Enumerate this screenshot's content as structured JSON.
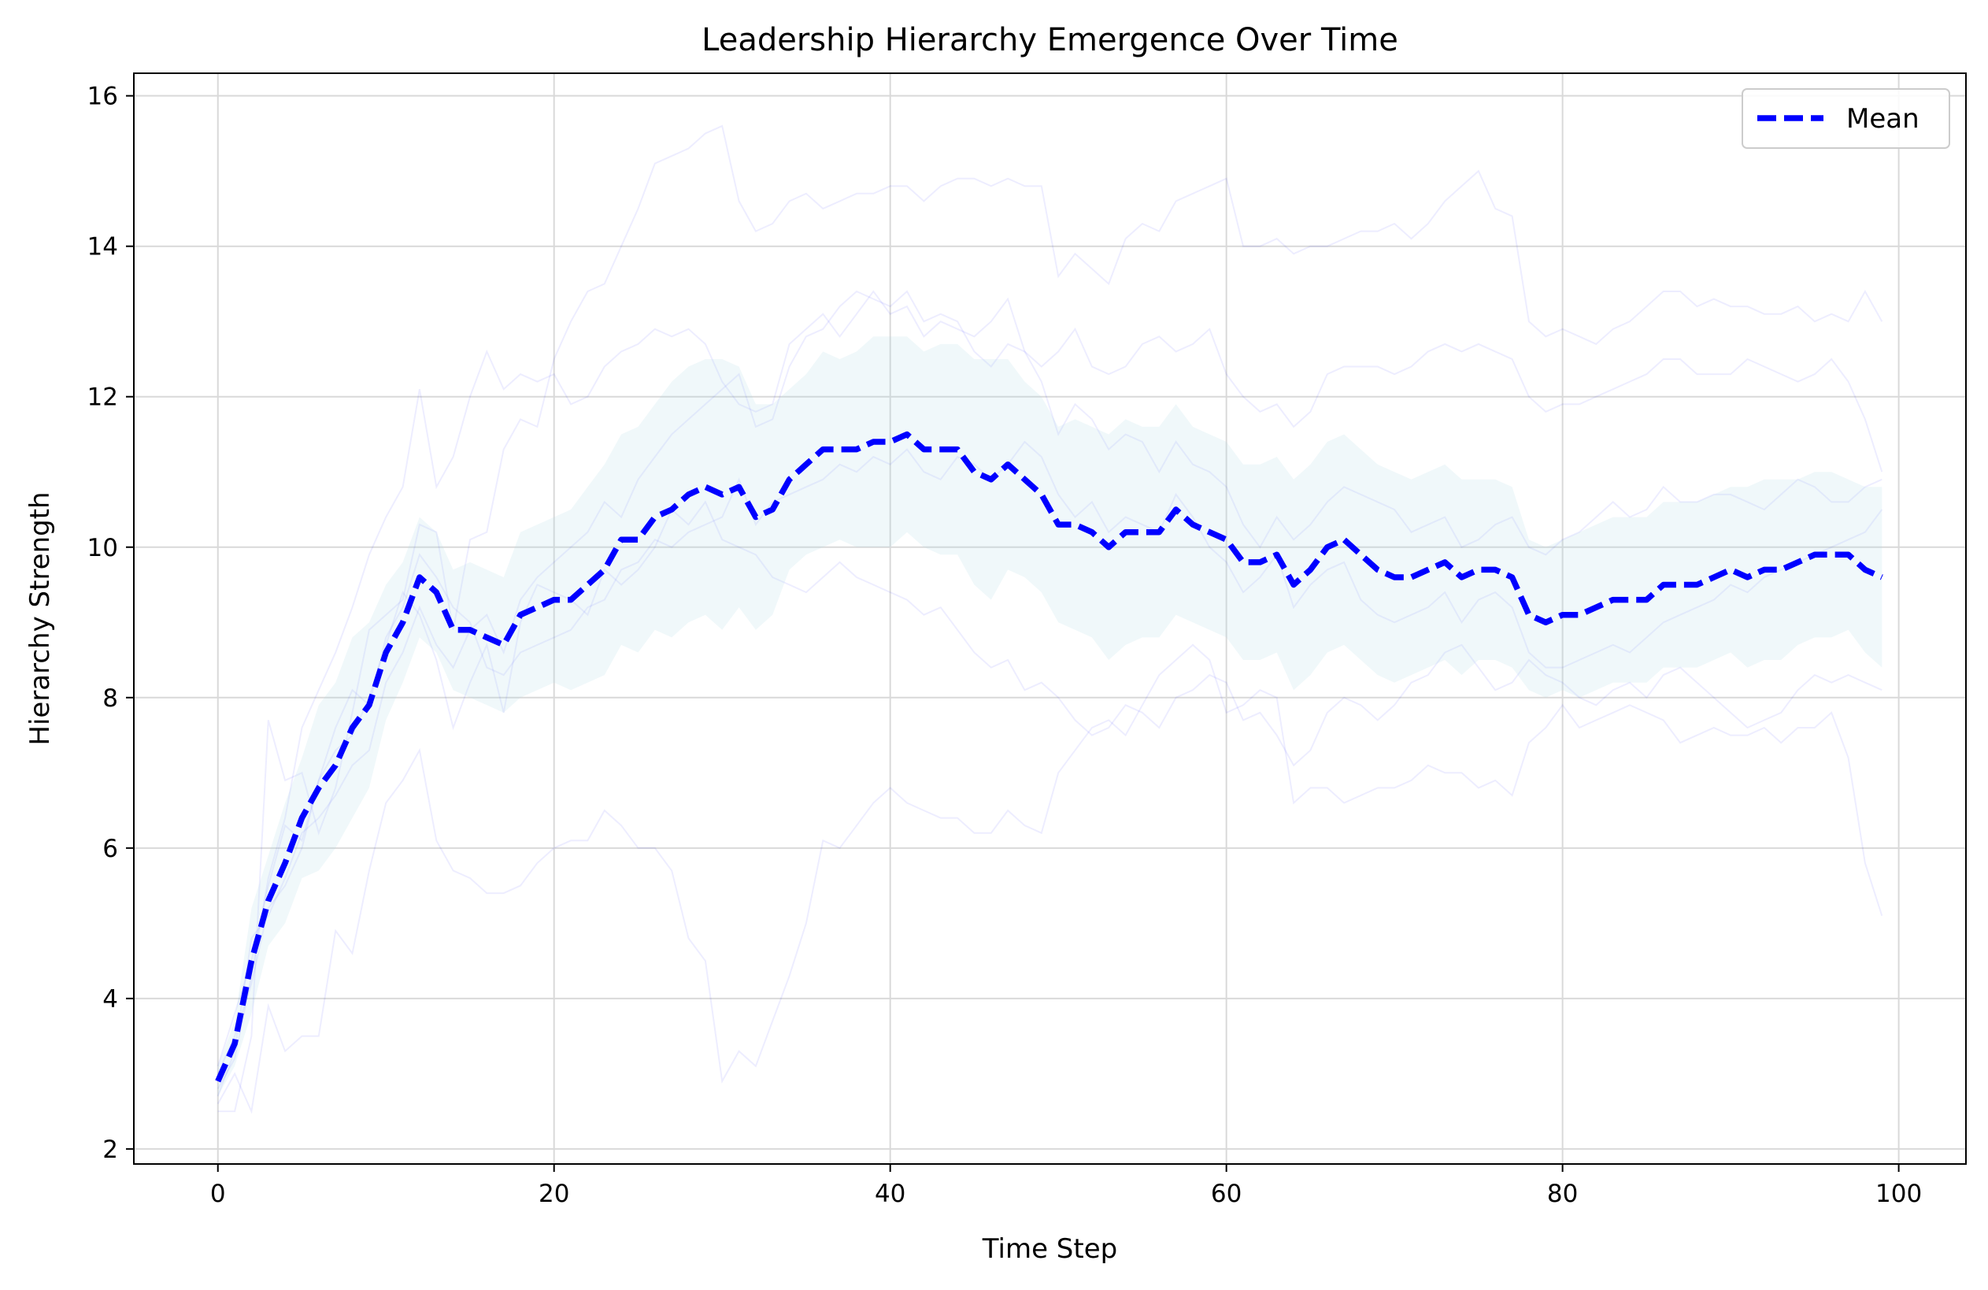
{
  "chart_data": {
    "type": "line",
    "title": "Leadership Hierarchy Emergence Over Time",
    "xlabel": "Time Step",
    "ylabel": "Hierarchy Strength",
    "xlim": [
      -5,
      104
    ],
    "ylim": [
      1.8,
      16.3
    ],
    "xticks": [
      0,
      20,
      40,
      60,
      80,
      100
    ],
    "yticks": [
      2,
      4,
      6,
      8,
      10,
      12,
      14,
      16
    ],
    "grid": true,
    "legend_position": "top-right",
    "colors": {
      "mean": "#0000ff",
      "band": "#add8e6",
      "runs": "#0000ff"
    },
    "series": [
      {
        "name": "Mean",
        "style": "dashed",
        "x": [
          0,
          1,
          2,
          3,
          4,
          5,
          6,
          7,
          8,
          9,
          10,
          11,
          12,
          13,
          14,
          15,
          16,
          17,
          18,
          19,
          20,
          21,
          22,
          23,
          24,
          25,
          26,
          27,
          28,
          29,
          30,
          31,
          32,
          33,
          34,
          35,
          36,
          37,
          38,
          39,
          40,
          41,
          42,
          43,
          44,
          45,
          46,
          47,
          48,
          49,
          50,
          51,
          52,
          53,
          54,
          55,
          56,
          57,
          58,
          59,
          60,
          61,
          62,
          63,
          64,
          65,
          66,
          67,
          68,
          69,
          70,
          71,
          72,
          73,
          74,
          75,
          76,
          77,
          78,
          79,
          80,
          81,
          82,
          83,
          84,
          85,
          86,
          87,
          88,
          89,
          90,
          91,
          92,
          93,
          94,
          95,
          96,
          97,
          98,
          99
        ],
        "y": [
          2.9,
          3.4,
          4.5,
          5.3,
          5.8,
          6.4,
          6.8,
          7.1,
          7.6,
          7.9,
          8.6,
          9.0,
          9.6,
          9.4,
          8.9,
          8.9,
          8.8,
          8.7,
          9.1,
          9.2,
          9.3,
          9.3,
          9.5,
          9.7,
          10.1,
          10.1,
          10.4,
          10.5,
          10.7,
          10.8,
          10.7,
          10.8,
          10.4,
          10.5,
          10.9,
          11.1,
          11.3,
          11.3,
          11.3,
          11.4,
          11.4,
          11.5,
          11.3,
          11.3,
          11.3,
          11.0,
          10.9,
          11.1,
          10.9,
          10.7,
          10.3,
          10.3,
          10.2,
          10.0,
          10.2,
          10.2,
          10.2,
          10.5,
          10.3,
          10.2,
          10.1,
          9.8,
          9.8,
          9.9,
          9.5,
          9.7,
          10.0,
          10.1,
          9.9,
          9.7,
          9.6,
          9.6,
          9.7,
          9.8,
          9.6,
          9.7,
          9.7,
          9.6,
          9.1,
          9.0,
          9.1,
          9.1,
          9.2,
          9.3,
          9.3,
          9.3,
          9.5,
          9.5,
          9.5,
          9.6,
          9.7,
          9.6,
          9.7,
          9.7,
          9.8,
          9.9,
          9.9,
          9.9,
          9.7,
          9.6
        ]
      }
    ],
    "band": {
      "upper": [
        3.1,
        3.7,
        5.2,
        5.9,
        6.6,
        7.2,
        7.9,
        8.2,
        8.8,
        9.0,
        9.5,
        9.8,
        10.4,
        10.2,
        9.7,
        9.8,
        9.7,
        9.6,
        10.2,
        10.3,
        10.4,
        10.5,
        10.8,
        11.1,
        11.5,
        11.6,
        11.9,
        12.2,
        12.4,
        12.5,
        12.5,
        12.4,
        11.9,
        11.9,
        12.1,
        12.3,
        12.6,
        12.5,
        12.6,
        12.8,
        12.8,
        12.8,
        12.6,
        12.7,
        12.7,
        12.5,
        12.5,
        12.5,
        12.2,
        12.0,
        11.6,
        11.7,
        11.6,
        11.5,
        11.7,
        11.6,
        11.6,
        11.9,
        11.6,
        11.5,
        11.4,
        11.1,
        11.1,
        11.2,
        10.9,
        11.1,
        11.4,
        11.5,
        11.3,
        11.1,
        11.0,
        10.9,
        11.0,
        11.1,
        10.9,
        10.9,
        10.9,
        10.8,
        10.1,
        10.0,
        10.1,
        10.2,
        10.3,
        10.4,
        10.4,
        10.4,
        10.6,
        10.6,
        10.6,
        10.7,
        10.8,
        10.8,
        10.9,
        10.9,
        10.9,
        11.0,
        11.0,
        10.9,
        10.8,
        10.8
      ],
      "lower": [
        2.7,
        3.1,
        3.8,
        4.7,
        5.0,
        5.6,
        5.7,
        6.0,
        6.4,
        6.8,
        7.7,
        8.2,
        8.8,
        8.6,
        8.1,
        8.0,
        7.9,
        7.8,
        8.0,
        8.1,
        8.2,
        8.1,
        8.2,
        8.3,
        8.7,
        8.6,
        8.9,
        8.8,
        9.0,
        9.1,
        8.9,
        9.2,
        8.9,
        9.1,
        9.7,
        9.9,
        10.0,
        10.1,
        10.0,
        10.0,
        10.0,
        10.2,
        10.0,
        9.9,
        9.9,
        9.5,
        9.3,
        9.7,
        9.6,
        9.4,
        9.0,
        8.9,
        8.8,
        8.5,
        8.7,
        8.8,
        8.8,
        9.1,
        9.0,
        8.9,
        8.8,
        8.5,
        8.5,
        8.6,
        8.1,
        8.3,
        8.6,
        8.7,
        8.5,
        8.3,
        8.2,
        8.3,
        8.4,
        8.5,
        8.3,
        8.5,
        8.5,
        8.4,
        8.1,
        8.0,
        8.1,
        8.0,
        8.1,
        8.2,
        8.2,
        8.2,
        8.4,
        8.4,
        8.4,
        8.5,
        8.6,
        8.4,
        8.5,
        8.5,
        8.7,
        8.8,
        8.8,
        8.9,
        8.6,
        8.4
      ]
    },
    "runs": [
      [
        2.5,
        2.5,
        3.5,
        7.7,
        6.9,
        7.0,
        6.2,
        6.8,
        7.8,
        8.9,
        9.1,
        9.3,
        10.3,
        10.2,
        8.9,
        10.1,
        10.2,
        11.3,
        11.7,
        11.6,
        12.5,
        13.0,
        13.4,
        13.5,
        14.0,
        14.5,
        15.1,
        15.2,
        15.3,
        15.5,
        15.6,
        14.6,
        14.2,
        14.3,
        14.6,
        14.7,
        14.5,
        14.6,
        14.7,
        14.7,
        14.8,
        14.8,
        14.6,
        14.8,
        14.9,
        14.9,
        14.8,
        14.9,
        14.8,
        14.8,
        13.6,
        13.9,
        13.7,
        13.5,
        14.1,
        14.3,
        14.2,
        14.6,
        14.7,
        14.8,
        14.9,
        14.0,
        14.0,
        14.1,
        13.9,
        14.0,
        14.0,
        14.1,
        14.2,
        14.2,
        14.3,
        14.1,
        14.3,
        14.6,
        14.8,
        15.0,
        14.5,
        14.4,
        13.0,
        12.8,
        12.9,
        12.8,
        12.7,
        12.9,
        13.0,
        13.2,
        13.4,
        13.4,
        13.2,
        13.3,
        13.2,
        13.2,
        13.1,
        13.1,
        13.2,
        13.0,
        13.1,
        13.0,
        13.4,
        13.0
      ],
      [
        2.6,
        3.0,
        2.5,
        3.9,
        3.3,
        3.5,
        3.5,
        4.9,
        4.6,
        5.7,
        6.6,
        6.9,
        7.3,
        6.1,
        5.7,
        5.6,
        5.4,
        5.4,
        5.5,
        5.8,
        6.0,
        6.1,
        6.1,
        6.5,
        6.3,
        6.0,
        6.0,
        5.7,
        4.8,
        4.5,
        2.9,
        3.3,
        3.1,
        3.7,
        4.3,
        5.0,
        6.1,
        6.0,
        6.3,
        6.6,
        6.8,
        6.6,
        6.5,
        6.4,
        6.4,
        6.2,
        6.2,
        6.5,
        6.3,
        6.2,
        7.0,
        7.3,
        7.6,
        7.7,
        7.5,
        7.9,
        8.3,
        8.5,
        8.7,
        8.5,
        7.8,
        7.9,
        8.1,
        8.0,
        6.6,
        6.8,
        6.8,
        6.6,
        6.7,
        6.8,
        6.8,
        6.9,
        7.1,
        7.0,
        7.0,
        6.8,
        6.9,
        6.7,
        7.4,
        7.6,
        7.9,
        7.6,
        7.7,
        7.8,
        7.9,
        7.8,
        7.7,
        7.4,
        7.5,
        7.6,
        7.5,
        7.5,
        7.6,
        7.4,
        7.6,
        7.6,
        7.8,
        7.2,
        5.8,
        5.1
      ],
      [
        2.8,
        3.2,
        4.3,
        5.6,
        6.4,
        7.6,
        8.1,
        8.6,
        9.2,
        9.9,
        10.4,
        10.8,
        12.1,
        10.8,
        11.2,
        12.0,
        12.6,
        12.1,
        12.3,
        12.2,
        12.3,
        11.9,
        12.0,
        12.4,
        12.6,
        12.7,
        12.9,
        12.8,
        12.9,
        12.7,
        12.2,
        11.9,
        11.8,
        11.9,
        12.7,
        12.9,
        13.1,
        12.8,
        13.1,
        13.4,
        13.1,
        13.2,
        12.8,
        13.0,
        12.9,
        12.8,
        13.0,
        13.3,
        12.6,
        12.4,
        12.6,
        12.9,
        12.4,
        12.3,
        12.4,
        12.7,
        12.8,
        12.6,
        12.7,
        12.9,
        12.3,
        12.0,
        11.8,
        11.9,
        11.6,
        11.8,
        12.3,
        12.4,
        12.4,
        12.4,
        12.3,
        12.4,
        12.6,
        12.7,
        12.6,
        12.7,
        12.6,
        12.5,
        12.0,
        11.8,
        11.9,
        11.9,
        12.0,
        12.1,
        12.2,
        12.3,
        12.5,
        12.5,
        12.3,
        12.3,
        12.3,
        12.5,
        12.4,
        12.3,
        12.2,
        12.3,
        12.5,
        12.2,
        11.7,
        11.0
      ],
      [
        3.0,
        3.5,
        4.2,
        5.2,
        5.5,
        6.0,
        6.9,
        7.3,
        7.5,
        8.0,
        8.7,
        9.4,
        9.1,
        8.5,
        7.6,
        8.2,
        8.7,
        7.8,
        9.0,
        9.5,
        9.4,
        9.3,
        9.1,
        9.7,
        9.5,
        9.7,
        10.0,
        10.5,
        10.3,
        10.6,
        10.1,
        10.0,
        9.9,
        9.6,
        9.5,
        9.4,
        9.6,
        9.8,
        9.6,
        9.5,
        9.4,
        9.3,
        9.1,
        9.2,
        8.9,
        8.6,
        8.4,
        8.5,
        8.1,
        8.2,
        8.0,
        7.7,
        7.5,
        7.6,
        7.9,
        7.8,
        7.6,
        8.0,
        8.1,
        8.3,
        8.2,
        7.7,
        7.8,
        7.5,
        7.1,
        7.3,
        7.8,
        8.0,
        7.9,
        7.7,
        7.9,
        8.2,
        8.3,
        8.6,
        8.7,
        8.4,
        8.1,
        8.2,
        8.5,
        8.3,
        8.2,
        8.0,
        7.9,
        8.1,
        8.2,
        8.0,
        8.3,
        8.4,
        8.2,
        8.0,
        7.8,
        7.6,
        7.7,
        7.8,
        8.1,
        8.3,
        8.2,
        8.3,
        8.2,
        8.1
      ],
      [
        2.7,
        3.3,
        4.8,
        5.1,
        5.6,
        6.2,
        6.4,
        6.7,
        7.1,
        7.3,
        8.2,
        8.6,
        9.2,
        8.7,
        8.4,
        8.9,
        9.1,
        8.6,
        9.3,
        9.6,
        9.8,
        10.0,
        10.2,
        10.6,
        10.4,
        10.9,
        11.2,
        11.5,
        11.7,
        11.9,
        12.1,
        12.3,
        11.6,
        11.7,
        12.4,
        12.8,
        12.9,
        13.2,
        13.4,
        13.3,
        13.2,
        13.4,
        13.0,
        13.1,
        13.0,
        12.6,
        12.4,
        12.7,
        12.6,
        12.2,
        11.5,
        11.9,
        11.7,
        11.3,
        11.5,
        11.4,
        11.0,
        11.4,
        11.1,
        11.0,
        10.8,
        10.3,
        10.0,
        10.4,
        10.1,
        10.3,
        10.6,
        10.8,
        10.7,
        10.6,
        10.5,
        10.2,
        10.3,
        10.4,
        10.0,
        10.1,
        10.3,
        10.4,
        10.0,
        9.9,
        10.1,
        10.2,
        10.4,
        10.6,
        10.4,
        10.5,
        10.8,
        10.6,
        10.6,
        10.7,
        10.7,
        10.6,
        10.5,
        10.7,
        10.9,
        10.8,
        10.6,
        10.6,
        10.8,
        10.9
      ],
      [
        3.1,
        3.8,
        4.5,
        5.5,
        6.3,
        6.1,
        6.9,
        7.6,
        8.1,
        7.9,
        8.8,
        9.2,
        9.9,
        9.6,
        9.2,
        9.0,
        8.4,
        8.3,
        8.6,
        8.7,
        8.8,
        8.9,
        9.2,
        9.3,
        9.7,
        9.8,
        10.1,
        10.0,
        10.2,
        10.3,
        10.4,
        10.9,
        10.3,
        10.6,
        10.7,
        10.8,
        10.9,
        11.1,
        11.0,
        11.2,
        11.1,
        11.3,
        11.0,
        10.9,
        11.2,
        11.1,
        10.9,
        11.1,
        11.4,
        11.2,
        10.7,
        10.4,
        10.6,
        10.2,
        10.4,
        10.3,
        10.2,
        10.7,
        10.4,
        10.0,
        9.8,
        9.4,
        9.6,
        9.9,
        9.2,
        9.5,
        9.7,
        9.8,
        9.3,
        9.1,
        9.0,
        9.1,
        9.2,
        9.4,
        9.0,
        9.3,
        9.4,
        9.2,
        8.6,
        8.4,
        8.4,
        8.5,
        8.6,
        8.7,
        8.6,
        8.8,
        9.0,
        9.1,
        9.2,
        9.3,
        9.5,
        9.4,
        9.6,
        9.7,
        9.8,
        9.9,
        10.0,
        10.1,
        10.2,
        10.5
      ]
    ]
  }
}
